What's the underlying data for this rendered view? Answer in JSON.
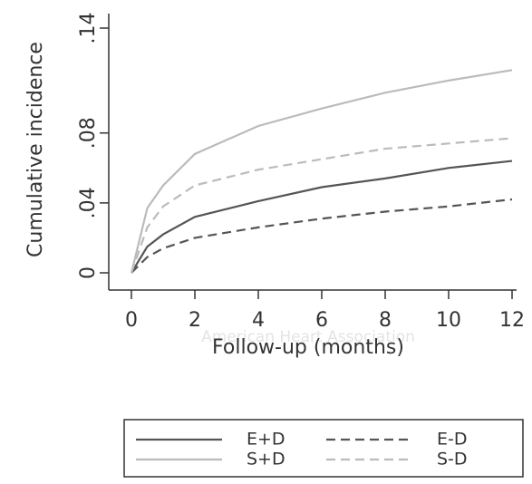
{
  "chart_data": {
    "type": "line",
    "ylabel": "Cumulative incidence",
    "xlabel": "Follow-up (months)",
    "watermark": "American Heart Association",
    "x": [
      0,
      0.5,
      1,
      2,
      4,
      6,
      8,
      10,
      12
    ],
    "xlim": [
      0,
      12
    ],
    "xticks": [
      0,
      2,
      4,
      6,
      8,
      10,
      12
    ],
    "ylim": [
      0,
      0.14
    ],
    "yticks": [
      0,
      {
        "value": 0.04,
        "label": ".04"
      },
      {
        "value": 0.08,
        "label": ".08"
      },
      {
        "value": 0.14,
        "label": ".14"
      }
    ],
    "series": [
      {
        "name": "E+D",
        "color": "#555555",
        "style": "solid",
        "values": [
          0,
          0.015,
          0.022,
          0.032,
          0.041,
          0.049,
          0.054,
          0.06,
          0.064
        ]
      },
      {
        "name": "E-D",
        "color": "#555555",
        "style": "dashed",
        "values": [
          0,
          0.009,
          0.014,
          0.02,
          0.026,
          0.031,
          0.035,
          0.038,
          0.042
        ]
      },
      {
        "name": "S+D",
        "color": "#bbbbbb",
        "style": "solid",
        "values": [
          0,
          0.037,
          0.05,
          0.068,
          0.084,
          0.094,
          0.103,
          0.11,
          0.116
        ]
      },
      {
        "name": "S-D",
        "color": "#bbbbbb",
        "style": "dashed",
        "values": [
          0,
          0.026,
          0.038,
          0.05,
          0.059,
          0.065,
          0.071,
          0.074,
          0.077
        ]
      }
    ]
  }
}
